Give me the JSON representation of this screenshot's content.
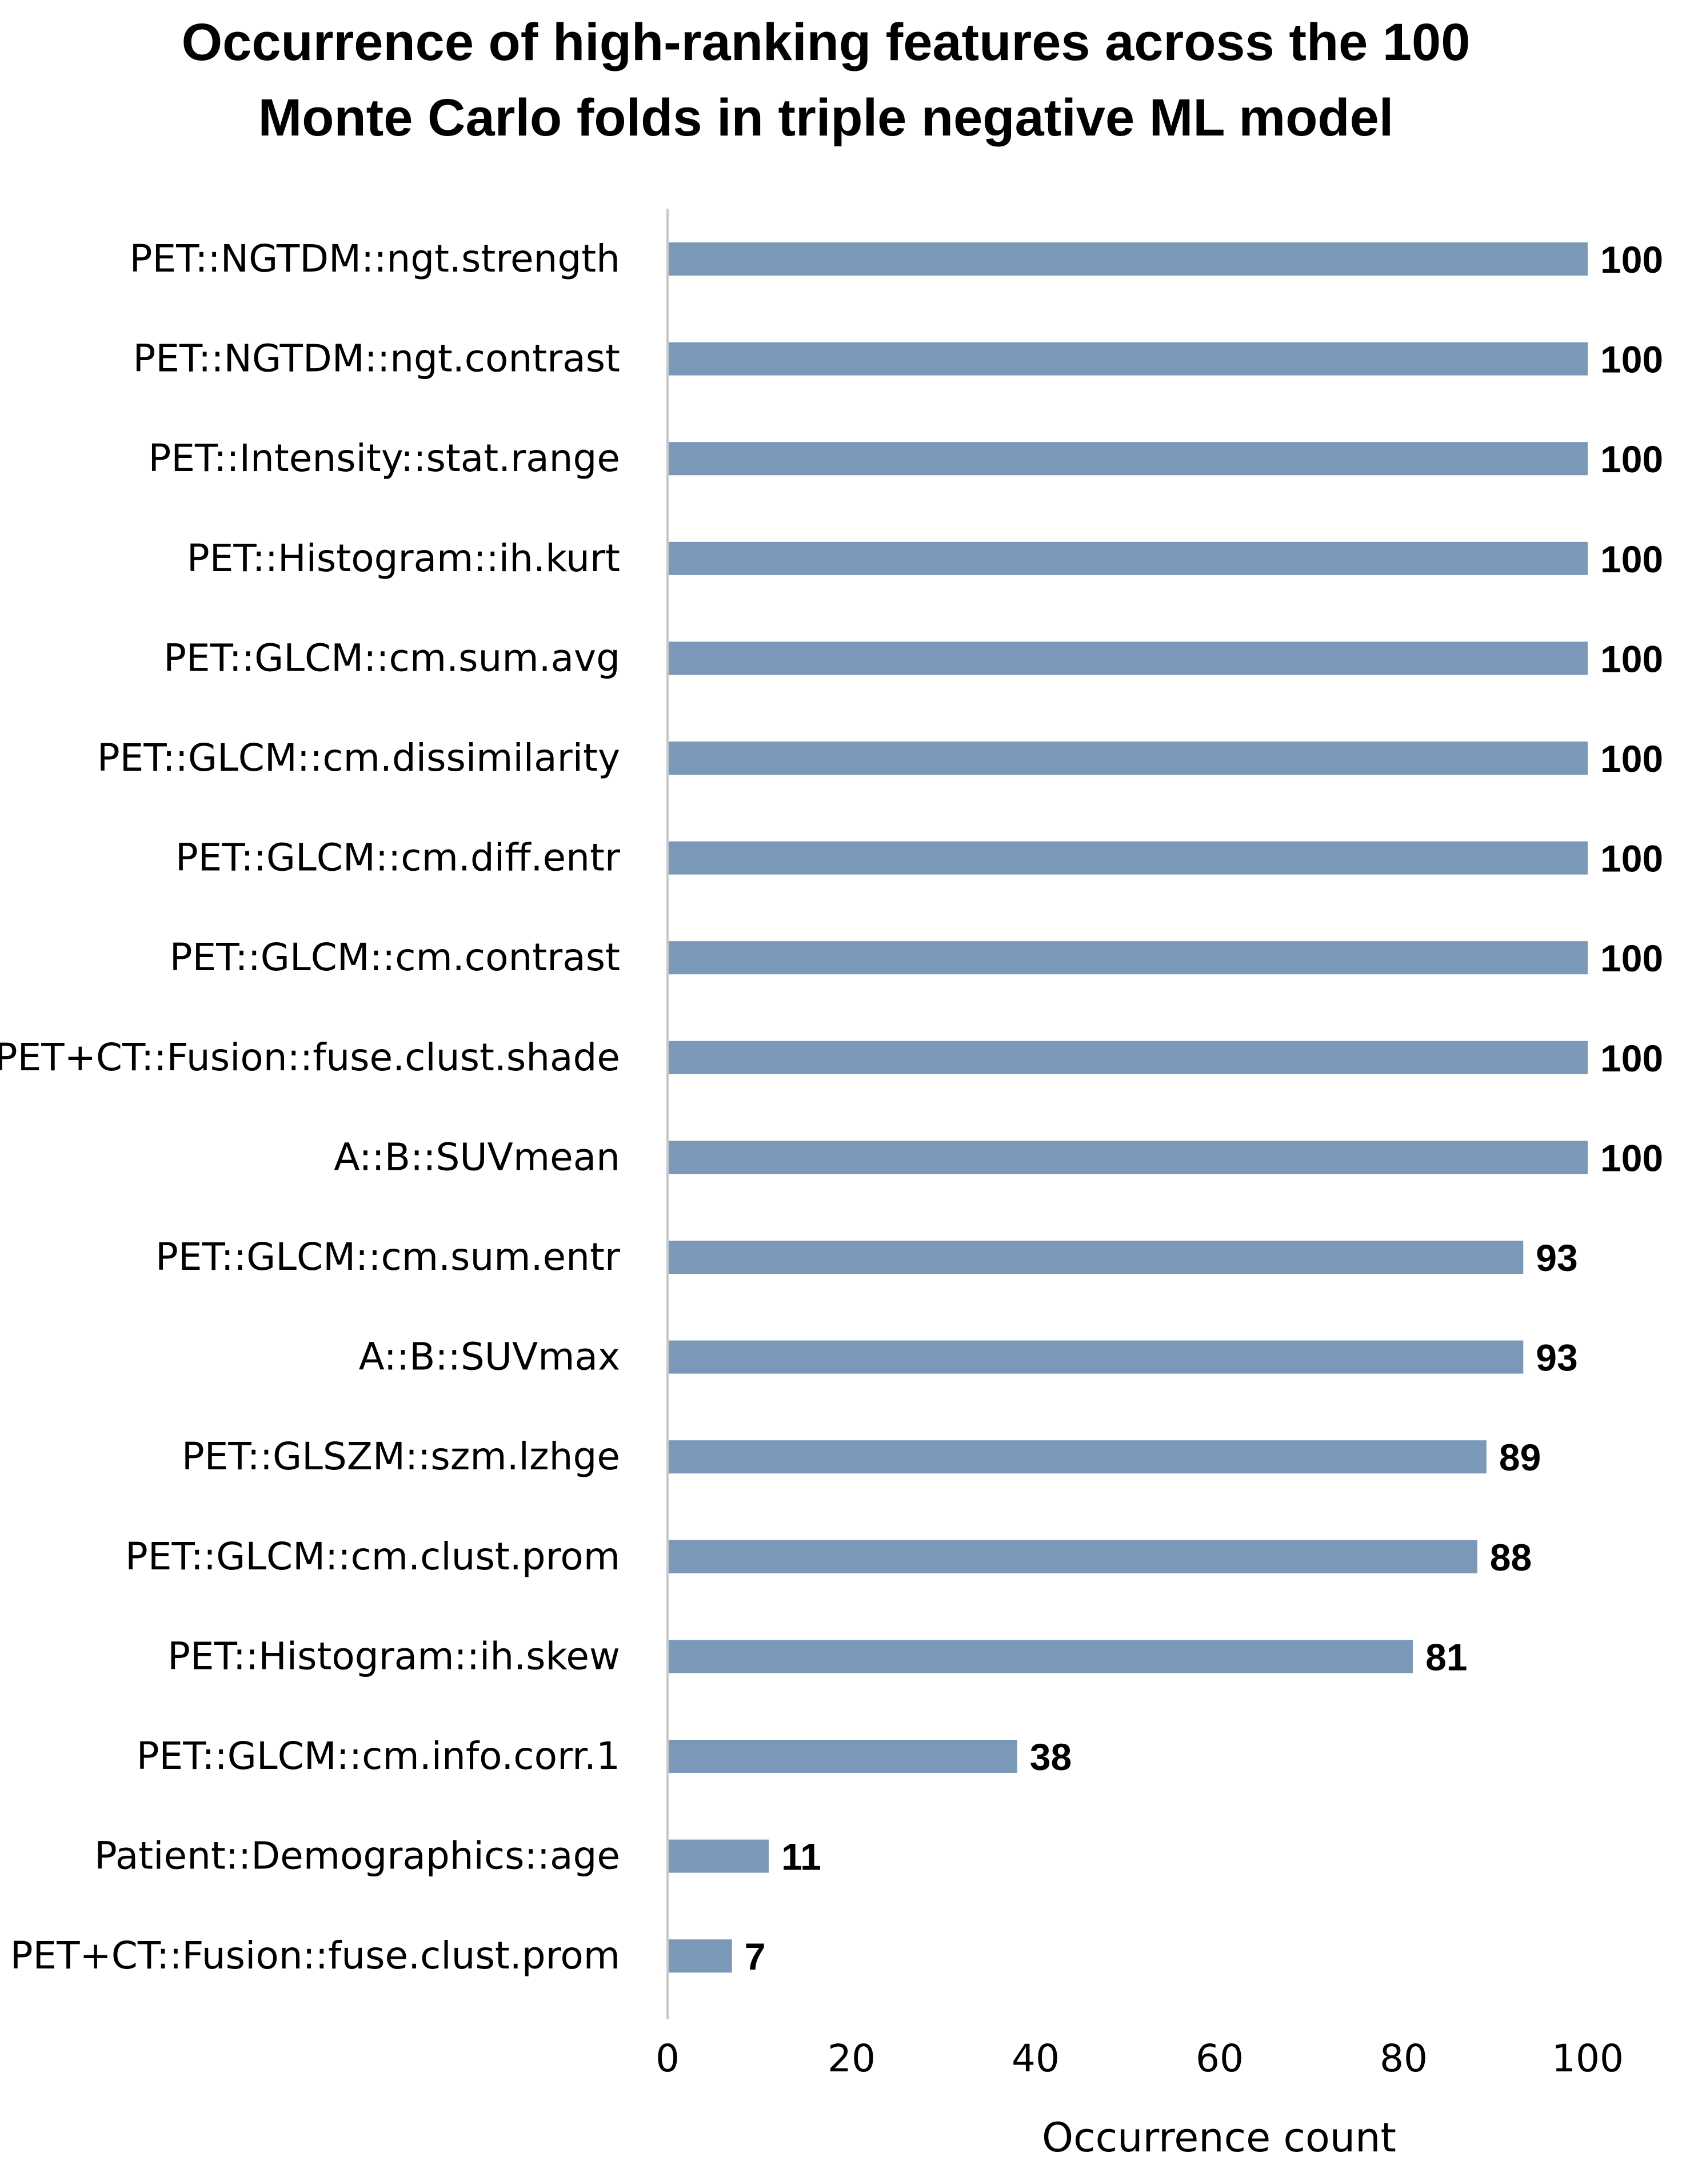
{
  "chart_data": {
    "type": "bar",
    "orientation": "horizontal",
    "title": "Occurrence of high-ranking features across the 100 Monte Carlo folds in triple negative ML model",
    "title_lines": [
      "Occurrence of high-ranking features across the 100",
      "Monte Carlo folds in triple negative ML model"
    ],
    "xlabel": "Occurrence count",
    "ylabel": "",
    "xlim": [
      0,
      100
    ],
    "x_ticks": [
      0,
      20,
      40,
      60,
      80,
      100
    ],
    "grid": false,
    "legend": null,
    "bar_color": "#7a99b8",
    "categories": [
      "PET::NGTDM::ngt.strength",
      "PET::NGTDM::ngt.contrast",
      "PET::Intensity::stat.range",
      "PET::Histogram::ih.kurt",
      "PET::GLCM::cm.sum.avg",
      "PET::GLCM::cm.dissimilarity",
      "PET::GLCM::cm.diff.entr",
      "PET::GLCM::cm.contrast",
      "PET+CT::Fusion::fuse.clust.shade",
      "A::B::SUVmean",
      "PET::GLCM::cm.sum.entr",
      "A::B::SUVmax",
      "PET::GLSZM::szm.lzhge",
      "PET::GLCM::cm.clust.prom",
      "PET::Histogram::ih.skew",
      "PET::GLCM::cm.info.corr.1",
      "Patient::Demographics::age",
      "PET+CT::Fusion::fuse.clust.prom"
    ],
    "values": [
      100,
      100,
      100,
      100,
      100,
      100,
      100,
      100,
      100,
      100,
      93,
      93,
      89,
      88,
      81,
      38,
      11,
      7
    ]
  }
}
